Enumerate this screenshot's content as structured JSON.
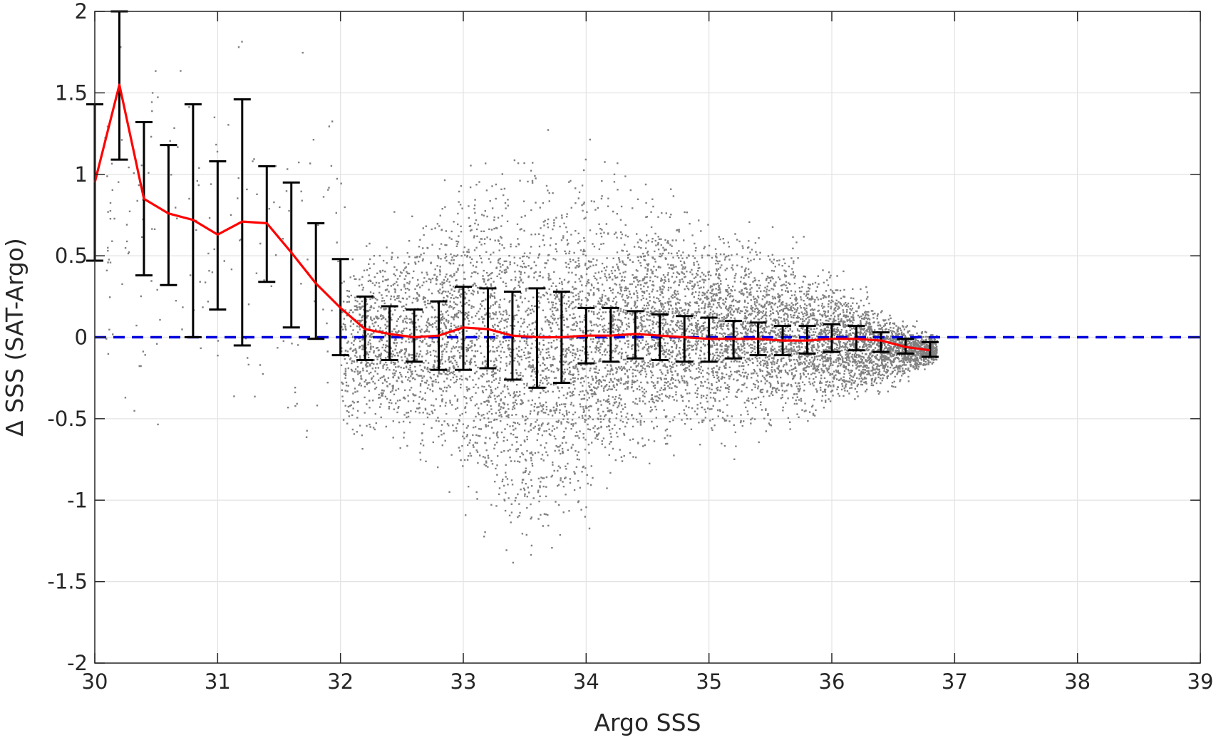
{
  "chart_data": {
    "type": "scatter",
    "title": "",
    "xlabel": "Argo SSS",
    "ylabel": "Δ SSS (SAT-Argo)",
    "xlim": [
      30,
      39
    ],
    "ylim": [
      -2,
      2
    ],
    "x_ticks": [
      "30",
      "31",
      "32",
      "33",
      "34",
      "35",
      "36",
      "37",
      "38",
      "39"
    ],
    "y_ticks": [
      "-2",
      "-1.5",
      "-1",
      "-0.5",
      "0",
      "0.5",
      "1",
      "1.5",
      "2"
    ],
    "grid": true,
    "legend": "none",
    "colors": {
      "scatter": "#808080",
      "mean_line": "#ff0000",
      "error_bars": "#000000",
      "zero_line": "#0000dd",
      "grid": "#e3e3e3",
      "axes": "#262626"
    },
    "reference_line": {
      "y": 0,
      "style": "dashed"
    },
    "scatter_envelope": [
      [
        32.0,
        -0.45,
        0.35
      ],
      [
        32.5,
        -0.5,
        0.5
      ],
      [
        33.0,
        -0.7,
        0.75
      ],
      [
        33.3,
        -0.95,
        0.8
      ],
      [
        33.6,
        -1.05,
        0.75
      ],
      [
        34.0,
        -0.75,
        0.75
      ],
      [
        34.5,
        -0.5,
        0.65
      ],
      [
        35.0,
        -0.45,
        0.55
      ],
      [
        35.5,
        -0.4,
        0.45
      ],
      [
        36.0,
        -0.35,
        0.3
      ],
      [
        36.5,
        -0.25,
        0.1
      ],
      [
        36.8,
        -0.15,
        0.0
      ]
    ],
    "binned": {
      "x": [
        30.0,
        30.2,
        30.4,
        30.6,
        30.8,
        31.0,
        31.2,
        31.4,
        31.6,
        31.8,
        32.0,
        32.2,
        32.4,
        32.6,
        32.8,
        33.0,
        33.2,
        33.4,
        33.6,
        33.8,
        34.0,
        34.2,
        34.4,
        34.6,
        34.8,
        35.0,
        35.2,
        35.4,
        35.6,
        35.8,
        36.0,
        36.2,
        36.4,
        36.6,
        36.8
      ],
      "mean": [
        0.95,
        1.55,
        0.85,
        0.76,
        0.72,
        0.63,
        0.71,
        0.7,
        0.52,
        0.33,
        0.18,
        0.05,
        0.02,
        0.0,
        0.01,
        0.06,
        0.05,
        0.01,
        0.0,
        0.0,
        0.01,
        0.01,
        0.02,
        0.01,
        0.0,
        -0.01,
        -0.01,
        -0.01,
        -0.02,
        -0.02,
        -0.01,
        -0.01,
        -0.02,
        -0.06,
        -0.08
      ],
      "lower": [
        0.47,
        1.09,
        0.38,
        0.32,
        0.0,
        0.17,
        -0.05,
        0.34,
        0.06,
        -0.01,
        -0.11,
        -0.14,
        -0.14,
        -0.15,
        -0.2,
        -0.2,
        -0.19,
        -0.26,
        -0.31,
        -0.28,
        -0.16,
        -0.15,
        -0.13,
        -0.14,
        -0.15,
        -0.15,
        -0.13,
        -0.11,
        -0.11,
        -0.1,
        -0.09,
        -0.08,
        -0.09,
        -0.1,
        -0.12
      ],
      "upper": [
        1.43,
        2.0,
        1.32,
        1.18,
        1.43,
        1.08,
        1.46,
        1.05,
        0.95,
        0.7,
        0.48,
        0.25,
        0.19,
        0.17,
        0.22,
        0.31,
        0.3,
        0.28,
        0.3,
        0.28,
        0.18,
        0.18,
        0.16,
        0.14,
        0.13,
        0.12,
        0.1,
        0.09,
        0.07,
        0.07,
        0.08,
        0.07,
        0.03,
        -0.01,
        -0.03
      ]
    }
  }
}
